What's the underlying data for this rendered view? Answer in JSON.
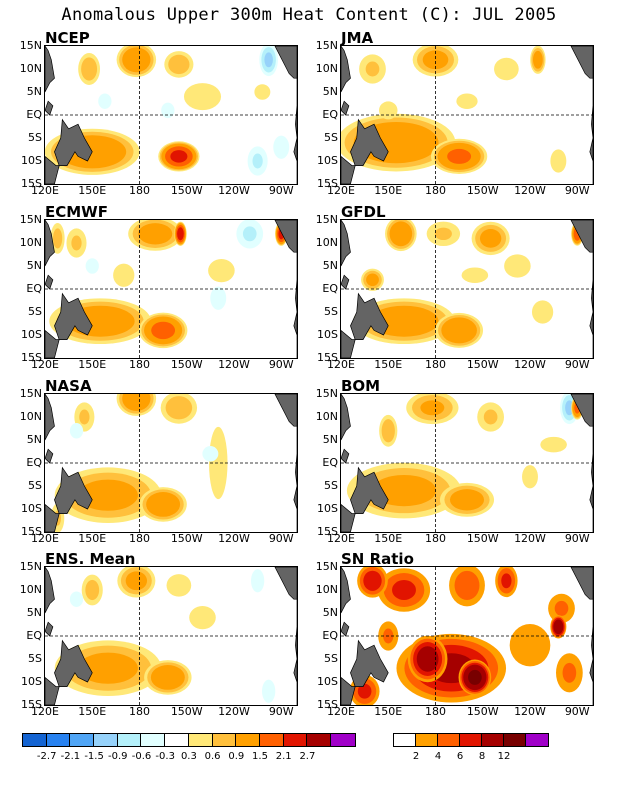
{
  "title": "Anomalous Upper 300m Heat Content (C): JUL 2005",
  "chart_data": {
    "type": "heatmap",
    "lat_ticks": [
      "15N",
      "10N",
      "5N",
      "EQ",
      "5S",
      "10S",
      "15S"
    ],
    "lon_ticks": [
      "120E",
      "150E",
      "180",
      "150W",
      "120W",
      "90W"
    ],
    "xlim": [
      "120E",
      "80W"
    ],
    "ylim": [
      "15S",
      "15N"
    ],
    "panels": [
      {
        "name": "NCEP",
        "blobs": [
          [
            150,
            -8,
            24,
            4,
            1.3
          ],
          [
            205,
            -9,
            10,
            2.5,
            2.1
          ],
          [
            178,
            12,
            10,
            3,
            1.3
          ],
          [
            205,
            11,
            8,
            2.5,
            0.8
          ],
          [
            148,
            10,
            6,
            3,
            0.8
          ],
          [
            220,
            4,
            12,
            3,
            0.5
          ],
          [
            262,
            12,
            5,
            3,
            -0.9
          ],
          [
            255,
            -10,
            6,
            3,
            -0.6
          ],
          [
            270,
            -7,
            6,
            3,
            -0.4
          ],
          [
            158,
            3,
            5,
            2,
            -0.4
          ],
          [
            198,
            1,
            5,
            2,
            -0.4
          ],
          [
            258,
            5,
            6,
            2,
            0.4
          ]
        ]
      },
      {
        "name": "JMA",
        "blobs": [
          [
            155,
            -6,
            30,
            5,
            1.3
          ],
          [
            195,
            -9,
            14,
            3,
            1.5
          ],
          [
            180,
            12,
            12,
            3,
            1.0
          ],
          [
            245,
            12,
            4,
            2.5,
            1.1
          ],
          [
            225,
            10,
            8,
            2.5,
            0.5
          ],
          [
            140,
            10,
            8,
            3,
            0.6
          ],
          [
            150,
            1,
            6,
            2,
            0.5
          ],
          [
            200,
            3,
            8,
            2,
            0.4
          ],
          [
            258,
            -10,
            6,
            3,
            0.4
          ]
        ]
      },
      {
        "name": "ECMWF",
        "blobs": [
          [
            155,
            -7,
            26,
            4,
            1.2
          ],
          [
            195,
            -9,
            12,
            3,
            1.6
          ],
          [
            190,
            12,
            14,
            3,
            1.1
          ],
          [
            206,
            12,
            3,
            2,
            2.4
          ],
          [
            140,
            10,
            6,
            3,
            0.6
          ],
          [
            170,
            3,
            8,
            3,
            0.4
          ],
          [
            270,
            12,
            3,
            2,
            2.2
          ],
          [
            250,
            12,
            8,
            3,
            -0.6
          ],
          [
            150,
            5,
            5,
            2,
            -0.4
          ],
          [
            230,
            -2,
            6,
            3,
            -0.4
          ],
          [
            232,
            4,
            10,
            3,
            0.4
          ],
          [
            128,
            11,
            4,
            3,
            0.7
          ]
        ]
      },
      {
        "name": "GFDL",
        "blobs": [
          [
            160,
            -7,
            26,
            4,
            1.2
          ],
          [
            195,
            -9,
            12,
            3,
            1.4
          ],
          [
            158,
            12,
            8,
            3,
            1.3
          ],
          [
            215,
            11,
            10,
            3,
            1.0
          ],
          [
            185,
            12,
            10,
            2.5,
            0.6
          ],
          [
            140,
            2,
            6,
            2,
            1.0
          ],
          [
            270,
            12,
            3,
            2,
            1.8
          ],
          [
            248,
            -5,
            8,
            3,
            0.4
          ],
          [
            232,
            5,
            10,
            3,
            0.4
          ],
          [
            205,
            3,
            10,
            2,
            0.4
          ]
        ]
      },
      {
        "name": "NASA",
        "blobs": [
          [
            160,
            -7,
            28,
            5,
            1.0
          ],
          [
            195,
            -9,
            12,
            3,
            1.3
          ],
          [
            178,
            14,
            10,
            3,
            1.3
          ],
          [
            205,
            12,
            10,
            3,
            0.8
          ],
          [
            145,
            10,
            6,
            3,
            0.6
          ],
          [
            230,
            0,
            6,
            8,
            0.5
          ],
          [
            128,
            -12,
            4,
            3,
            0.6
          ],
          [
            140,
            7,
            5,
            2,
            -0.4
          ],
          [
            225,
            2,
            6,
            2,
            -0.4
          ]
        ]
      },
      {
        "name": "BOM",
        "blobs": [
          [
            160,
            -6,
            30,
            5,
            1.0
          ],
          [
            200,
            -8,
            14,
            3,
            1.1
          ],
          [
            178,
            12,
            14,
            3,
            0.9
          ],
          [
            215,
            10,
            8,
            3,
            0.6
          ],
          [
            265,
            12,
            5,
            3,
            -0.9
          ],
          [
            270,
            12,
            3,
            2,
            1.6
          ],
          [
            150,
            7,
            5,
            3,
            0.8
          ],
          [
            255,
            4,
            10,
            2,
            0.4
          ],
          [
            240,
            -3,
            6,
            3,
            0.4
          ]
        ]
      },
      {
        "name": "ENS. Mean",
        "blobs": [
          [
            160,
            -7,
            28,
            5,
            1.0
          ],
          [
            198,
            -9,
            12,
            3,
            1.3
          ],
          [
            178,
            12,
            10,
            3,
            1.0
          ],
          [
            150,
            10,
            6,
            3,
            0.7
          ],
          [
            205,
            11,
            8,
            2.5,
            0.5
          ],
          [
            220,
            4,
            10,
            3,
            0.4
          ],
          [
            262,
            -12,
            5,
            3,
            -0.4
          ],
          [
            255,
            12,
            5,
            3,
            -0.4
          ],
          [
            140,
            8,
            5,
            2,
            -0.4
          ]
        ]
      },
      {
        "name": "SN Ratio",
        "blobs": [
          [
            190,
            -7,
            28,
            6,
            8
          ],
          [
            205,
            -9,
            8,
            3,
            12
          ],
          [
            175,
            -5,
            10,
            4,
            9
          ],
          [
            160,
            10,
            14,
            4,
            6
          ],
          [
            200,
            11,
            10,
            4,
            5
          ],
          [
            150,
            0,
            6,
            3,
            4
          ],
          [
            240,
            -2,
            14,
            5,
            3
          ],
          [
            260,
            6,
            8,
            3,
            4
          ],
          [
            265,
            -8,
            8,
            4,
            4
          ],
          [
            135,
            -12,
            8,
            3,
            6
          ],
          [
            140,
            12,
            8,
            3,
            7
          ],
          [
            225,
            12,
            6,
            3,
            6
          ],
          [
            258,
            2,
            4,
            2,
            10
          ]
        ]
      }
    ],
    "anomaly_colorbar": {
      "levels": [
        "-2.7",
        "-2.1",
        "-1.5",
        "-0.9",
        "-0.6",
        "-0.3",
        "0.3",
        "0.6",
        "0.9",
        "1.5",
        "2.1",
        "2.7"
      ],
      "colors": [
        "#1464d2",
        "#2882f0",
        "#50a5f5",
        "#96d2fa",
        "#b4f0fa",
        "#e1ffff",
        "#ffffff",
        "#ffe878",
        "#ffc03c",
        "#ffa000",
        "#ff6000",
        "#e11400",
        "#a50000",
        "#a000c8"
      ]
    },
    "sn_colorbar": {
      "levels": [
        "2",
        "4",
        "6",
        "8",
        "12"
      ],
      "colors": [
        "#ffffff",
        "#ffa000",
        "#ff6000",
        "#e11400",
        "#a50000",
        "#780000",
        "#a000c8"
      ]
    },
    "land_color": "#646464"
  }
}
